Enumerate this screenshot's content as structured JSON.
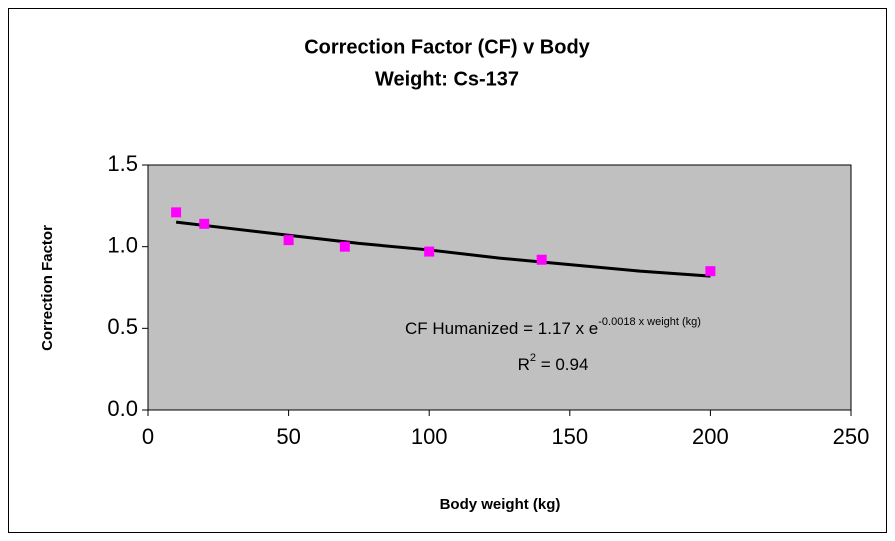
{
  "chart_data": {
    "type": "scatter",
    "title": [
      "Correction Factor (CF) v Body",
      "Weight: Cs-137"
    ],
    "xlabel": "Body weight (kg)",
    "ylabel": "Correction Factor",
    "series": [
      {
        "color": "#ff00ff",
        "x": [
          10,
          20,
          50,
          70,
          100,
          140,
          200
        ],
        "values": [
          1.21,
          1.14,
          1.04,
          1.0,
          0.97,
          0.92,
          0.85
        ]
      }
    ],
    "trendline": {
      "color": "#000000",
      "x": [
        10,
        25,
        50,
        75,
        100,
        125,
        150,
        175,
        200
      ],
      "values": [
        1.15,
        1.12,
        1.07,
        1.02,
        0.98,
        0.93,
        0.89,
        0.85,
        0.82
      ]
    },
    "annotation": {
      "equation": {
        "text": "CF Humanized = 1.17 x e",
        "superscript": "-0.0018 x weight (kg)"
      },
      "r_squared": {
        "text": "R",
        "superscript": "2",
        "rest": " = 0.94"
      }
    },
    "xlim": [
      0,
      250
    ],
    "xticks": [
      0,
      50,
      100,
      150,
      200,
      250
    ],
    "ylim": [
      0,
      1.5
    ],
    "yticks": [
      {
        "value": 0,
        "label": "0.0"
      },
      0.5,
      {
        "value": 1,
        "label": "1.0"
      },
      1.5
    ],
    "plot_background": "#c0c0c0"
  }
}
